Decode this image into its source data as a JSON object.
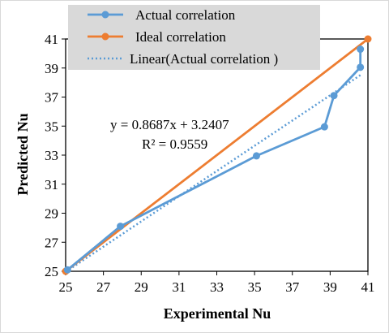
{
  "chart_data": {
    "type": "line",
    "xlabel": "Experimental Nu",
    "ylabel": "Predicted Nu",
    "xlim": [
      25,
      41
    ],
    "ylim": [
      25,
      41
    ],
    "x_ticks": [
      "25",
      "27",
      "29",
      "31",
      "33",
      "35",
      "37",
      "39",
      "41"
    ],
    "y_ticks": [
      "25",
      "27",
      "29",
      "31",
      "33",
      "35",
      "37",
      "39",
      "41"
    ],
    "grid": "none",
    "legend_position": "top",
    "series": [
      {
        "name": "Actual correlation",
        "color": "#5B9BD5",
        "style": "line-markers",
        "points": [
          [
            25.1,
            25.1
          ],
          [
            27.9,
            28.1
          ],
          [
            35.1,
            32.95
          ],
          [
            38.7,
            34.95
          ],
          [
            39.2,
            37.1
          ],
          [
            40.6,
            39.05
          ],
          [
            40.6,
            40.3
          ]
        ]
      },
      {
        "name": "Ideal correlation",
        "color": "#ED7D31",
        "style": "line-markers",
        "points": [
          [
            25,
            25
          ],
          [
            41,
            41
          ]
        ]
      },
      {
        "name": "Linear(Actual correlation )",
        "color": "#5B9BD5",
        "style": "dotted",
        "points": [
          [
            25,
            24.958
          ],
          [
            40.6,
            38.51
          ]
        ]
      }
    ],
    "annotations": [
      {
        "text": "y = 0.8687x + 3.2407"
      },
      {
        "text": "R² = 0.9559"
      }
    ]
  }
}
